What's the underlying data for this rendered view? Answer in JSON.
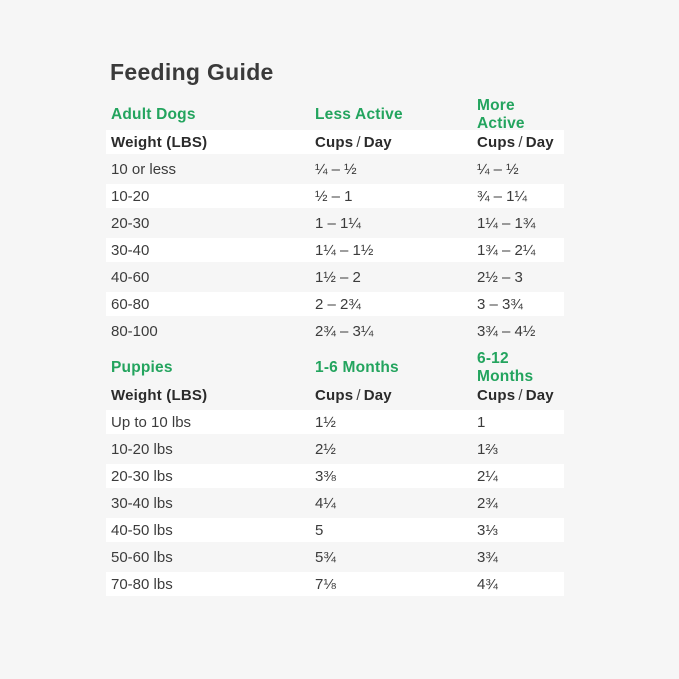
{
  "page": {
    "title": "Feeding Guide",
    "background_color": "#f6f6f6",
    "row_highlight_color": "#ffffff",
    "accent_green": "#23a45e",
    "text_color": "#3c3c3c"
  },
  "adult_table": {
    "section": {
      "col1": "Adult Dogs",
      "col2": "Less Active",
      "col3": "More Active"
    },
    "column_headers": {
      "weight": "Weight (LBS)",
      "cups": "Cups",
      "slash": "/",
      "day": "Day"
    },
    "rows": [
      {
        "weight": "10 or less",
        "less_active": "¼ – ½",
        "more_active": "¼ – ½"
      },
      {
        "weight": "10-20",
        "less_active": "½ – 1",
        "more_active": "¾ – 1¼"
      },
      {
        "weight": "20-30",
        "less_active": "1 – 1¼",
        "more_active": "1¼ – 1¾"
      },
      {
        "weight": "30-40",
        "less_active": "1¼ – 1½",
        "more_active": "1¾ – 2¼"
      },
      {
        "weight": "40-60",
        "less_active": "1½ – 2",
        "more_active": "2½ – 3"
      },
      {
        "weight": "60-80",
        "less_active": "2 – 2¾",
        "more_active": "3 – 3¾"
      },
      {
        "weight": "80-100",
        "less_active": "2¾ – 3¼",
        "more_active": "3¾ – 4½"
      }
    ]
  },
  "puppy_table": {
    "section": {
      "col1": "Puppies",
      "col2": "1-6 Months",
      "col3": "6-12 Months"
    },
    "column_headers": {
      "weight": "Weight (LBS)",
      "cups": "Cups",
      "slash": "/",
      "day": "Day"
    },
    "rows": [
      {
        "weight": "Up to 10 lbs",
        "months_1_6": "1½",
        "months_6_12": "1"
      },
      {
        "weight": "10-20 lbs",
        "months_1_6": "2½",
        "months_6_12": "1⅔"
      },
      {
        "weight": "20-30 lbs",
        "months_1_6": "3⅜",
        "months_6_12": "2¼"
      },
      {
        "weight": "30-40 lbs",
        "months_1_6": "4¼",
        "months_6_12": "2¾"
      },
      {
        "weight": "40-50 lbs",
        "months_1_6": "5",
        "months_6_12": "3⅓"
      },
      {
        "weight": "50-60 lbs",
        "months_1_6": "5¾",
        "months_6_12": "3¾"
      },
      {
        "weight": "70-80 lbs",
        "months_1_6": "7⅛",
        "months_6_12": "4¾"
      }
    ]
  }
}
